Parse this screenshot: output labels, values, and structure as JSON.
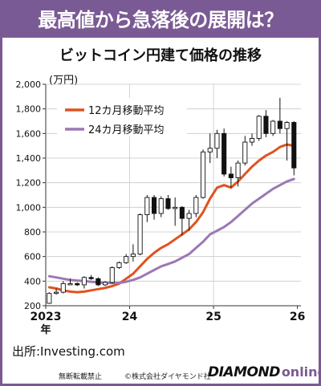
{
  "headline": "最高値から急落後の展開は？",
  "footer": {
    "source": "出所:Investing.com",
    "rights": "無断転載禁止",
    "copyright": "©株式会社ダイヤモンド社",
    "logo_main": "DIAMOND",
    "logo_sub": "online"
  },
  "colors": {
    "brand": "#7a5a94",
    "ma12": "#e0521f",
    "ma24": "#9b78b5",
    "bear_candle": "#111111",
    "bull_candle": "#ffffff"
  },
  "chart_data": {
    "type": "candlestick",
    "title": "ビットコイン円建て価格の推移",
    "unit": "(万円)",
    "ylim": [
      200,
      2000
    ],
    "yticks": [
      200,
      400,
      600,
      800,
      1000,
      1200,
      1400,
      1600,
      1800,
      2000
    ],
    "ytick_labels": [
      "200",
      "400",
      "600",
      "800",
      "1,000",
      "1,200",
      "1,400",
      "1,600",
      "1,800",
      "2,000"
    ],
    "grid": true,
    "legend_position": "top-left",
    "x_labels": [
      {
        "month_index": 0,
        "label": "2023",
        "sub": "年"
      },
      {
        "month_index": 12,
        "label": "24"
      },
      {
        "month_index": 24,
        "label": "25"
      },
      {
        "month_index": 36,
        "label": "26"
      }
    ],
    "candles": [
      {
        "date": "2023-01",
        "open": 220,
        "high": 310,
        "low": 215,
        "close": 300
      },
      {
        "date": "2023-02",
        "open": 300,
        "high": 340,
        "low": 290,
        "close": 310
      },
      {
        "date": "2023-03",
        "open": 310,
        "high": 400,
        "low": 300,
        "close": 380
      },
      {
        "date": "2023-04",
        "open": 380,
        "high": 420,
        "low": 370,
        "close": 380
      },
      {
        "date": "2023-05",
        "open": 380,
        "high": 390,
        "low": 360,
        "close": 370
      },
      {
        "date": "2023-06",
        "open": 370,
        "high": 440,
        "low": 340,
        "close": 430
      },
      {
        "date": "2023-07",
        "open": 430,
        "high": 450,
        "low": 410,
        "close": 420
      },
      {
        "date": "2023-08",
        "open": 420,
        "high": 430,
        "low": 360,
        "close": 370
      },
      {
        "date": "2023-09",
        "open": 370,
        "high": 400,
        "low": 360,
        "close": 390
      },
      {
        "date": "2023-10",
        "open": 390,
        "high": 520,
        "low": 380,
        "close": 510
      },
      {
        "date": "2023-11",
        "open": 510,
        "high": 560,
        "low": 500,
        "close": 550
      },
      {
        "date": "2023-12",
        "open": 550,
        "high": 620,
        "low": 540,
        "close": 600
      },
      {
        "date": "2024-01",
        "open": 600,
        "high": 700,
        "low": 560,
        "close": 620
      },
      {
        "date": "2024-02",
        "open": 620,
        "high": 950,
        "low": 610,
        "close": 940
      },
      {
        "date": "2024-03",
        "open": 940,
        "high": 1100,
        "low": 880,
        "close": 1080
      },
      {
        "date": "2024-04",
        "open": 1080,
        "high": 1100,
        "low": 900,
        "close": 950
      },
      {
        "date": "2024-05",
        "open": 950,
        "high": 1090,
        "low": 920,
        "close": 1070
      },
      {
        "date": "2024-06",
        "open": 1070,
        "high": 1100,
        "low": 980,
        "close": 990
      },
      {
        "date": "2024-07",
        "open": 990,
        "high": 1080,
        "low": 850,
        "close": 1000
      },
      {
        "date": "2024-08",
        "open": 1000,
        "high": 1010,
        "low": 770,
        "close": 910
      },
      {
        "date": "2024-09",
        "open": 910,
        "high": 980,
        "low": 810,
        "close": 950
      },
      {
        "date": "2024-10",
        "open": 950,
        "high": 1100,
        "low": 920,
        "close": 1080
      },
      {
        "date": "2024-11",
        "open": 1080,
        "high": 1470,
        "low": 1070,
        "close": 1450
      },
      {
        "date": "2024-12",
        "open": 1450,
        "high": 1600,
        "low": 1360,
        "close": 1480
      },
      {
        "date": "2025-01",
        "open": 1480,
        "high": 1630,
        "low": 1400,
        "close": 1600
      },
      {
        "date": "2025-02",
        "open": 1600,
        "high": 1640,
        "low": 1250,
        "close": 1270
      },
      {
        "date": "2025-03",
        "open": 1270,
        "high": 1330,
        "low": 1160,
        "close": 1240
      },
      {
        "date": "2025-04",
        "open": 1240,
        "high": 1380,
        "low": 1170,
        "close": 1360
      },
      {
        "date": "2025-05",
        "open": 1360,
        "high": 1580,
        "low": 1340,
        "close": 1530
      },
      {
        "date": "2025-06",
        "open": 1530,
        "high": 1600,
        "low": 1500,
        "close": 1560
      },
      {
        "date": "2025-07",
        "open": 1560,
        "high": 1750,
        "low": 1540,
        "close": 1740
      },
      {
        "date": "2025-08",
        "open": 1740,
        "high": 1790,
        "low": 1570,
        "close": 1600
      },
      {
        "date": "2025-09",
        "open": 1600,
        "high": 1710,
        "low": 1580,
        "close": 1700
      },
      {
        "date": "2025-10",
        "open": 1700,
        "high": 1890,
        "low": 1600,
        "close": 1640
      },
      {
        "date": "2025-11",
        "open": 1640,
        "high": 1700,
        "low": 1380,
        "close": 1690
      },
      {
        "date": "2025-12",
        "open": 1690,
        "high": 1700,
        "low": 1260,
        "close": 1320
      }
    ],
    "series": [
      {
        "name": "12カ月移動平均",
        "color": "#e0521f",
        "points": [
          [
            0,
            350
          ],
          [
            1,
            340
          ],
          [
            2,
            325
          ],
          [
            3,
            315
          ],
          [
            4,
            310
          ],
          [
            5,
            315
          ],
          [
            6,
            325
          ],
          [
            7,
            335
          ],
          [
            8,
            345
          ],
          [
            9,
            360
          ],
          [
            10,
            380
          ],
          [
            11,
            420
          ],
          [
            12,
            460
          ],
          [
            13,
            520
          ],
          [
            14,
            580
          ],
          [
            15,
            630
          ],
          [
            16,
            670
          ],
          [
            17,
            700
          ],
          [
            18,
            740
          ],
          [
            19,
            780
          ],
          [
            20,
            820
          ],
          [
            21,
            880
          ],
          [
            22,
            960
          ],
          [
            23,
            1070
          ],
          [
            24,
            1160
          ],
          [
            25,
            1180
          ],
          [
            26,
            1160
          ],
          [
            27,
            1210
          ],
          [
            28,
            1270
          ],
          [
            29,
            1330
          ],
          [
            30,
            1380
          ],
          [
            31,
            1420
          ],
          [
            32,
            1450
          ],
          [
            33,
            1490
          ],
          [
            34,
            1510
          ],
          [
            35,
            1500
          ]
        ]
      },
      {
        "name": "24カ月移動平均",
        "color": "#9b78b5",
        "points": [
          [
            0,
            440
          ],
          [
            1,
            430
          ],
          [
            2,
            420
          ],
          [
            3,
            410
          ],
          [
            4,
            405
          ],
          [
            5,
            400
          ],
          [
            6,
            395
          ],
          [
            7,
            390
          ],
          [
            8,
            385
          ],
          [
            9,
            385
          ],
          [
            10,
            385
          ],
          [
            11,
            395
          ],
          [
            12,
            410
          ],
          [
            13,
            430
          ],
          [
            14,
            460
          ],
          [
            15,
            490
          ],
          [
            16,
            520
          ],
          [
            17,
            540
          ],
          [
            18,
            560
          ],
          [
            19,
            590
          ],
          [
            20,
            620
          ],
          [
            21,
            670
          ],
          [
            22,
            720
          ],
          [
            23,
            780
          ],
          [
            24,
            810
          ],
          [
            25,
            840
          ],
          [
            26,
            880
          ],
          [
            27,
            930
          ],
          [
            28,
            980
          ],
          [
            29,
            1030
          ],
          [
            30,
            1070
          ],
          [
            31,
            1110
          ],
          [
            32,
            1150
          ],
          [
            33,
            1180
          ],
          [
            34,
            1210
          ],
          [
            35,
            1230
          ]
        ]
      }
    ]
  }
}
